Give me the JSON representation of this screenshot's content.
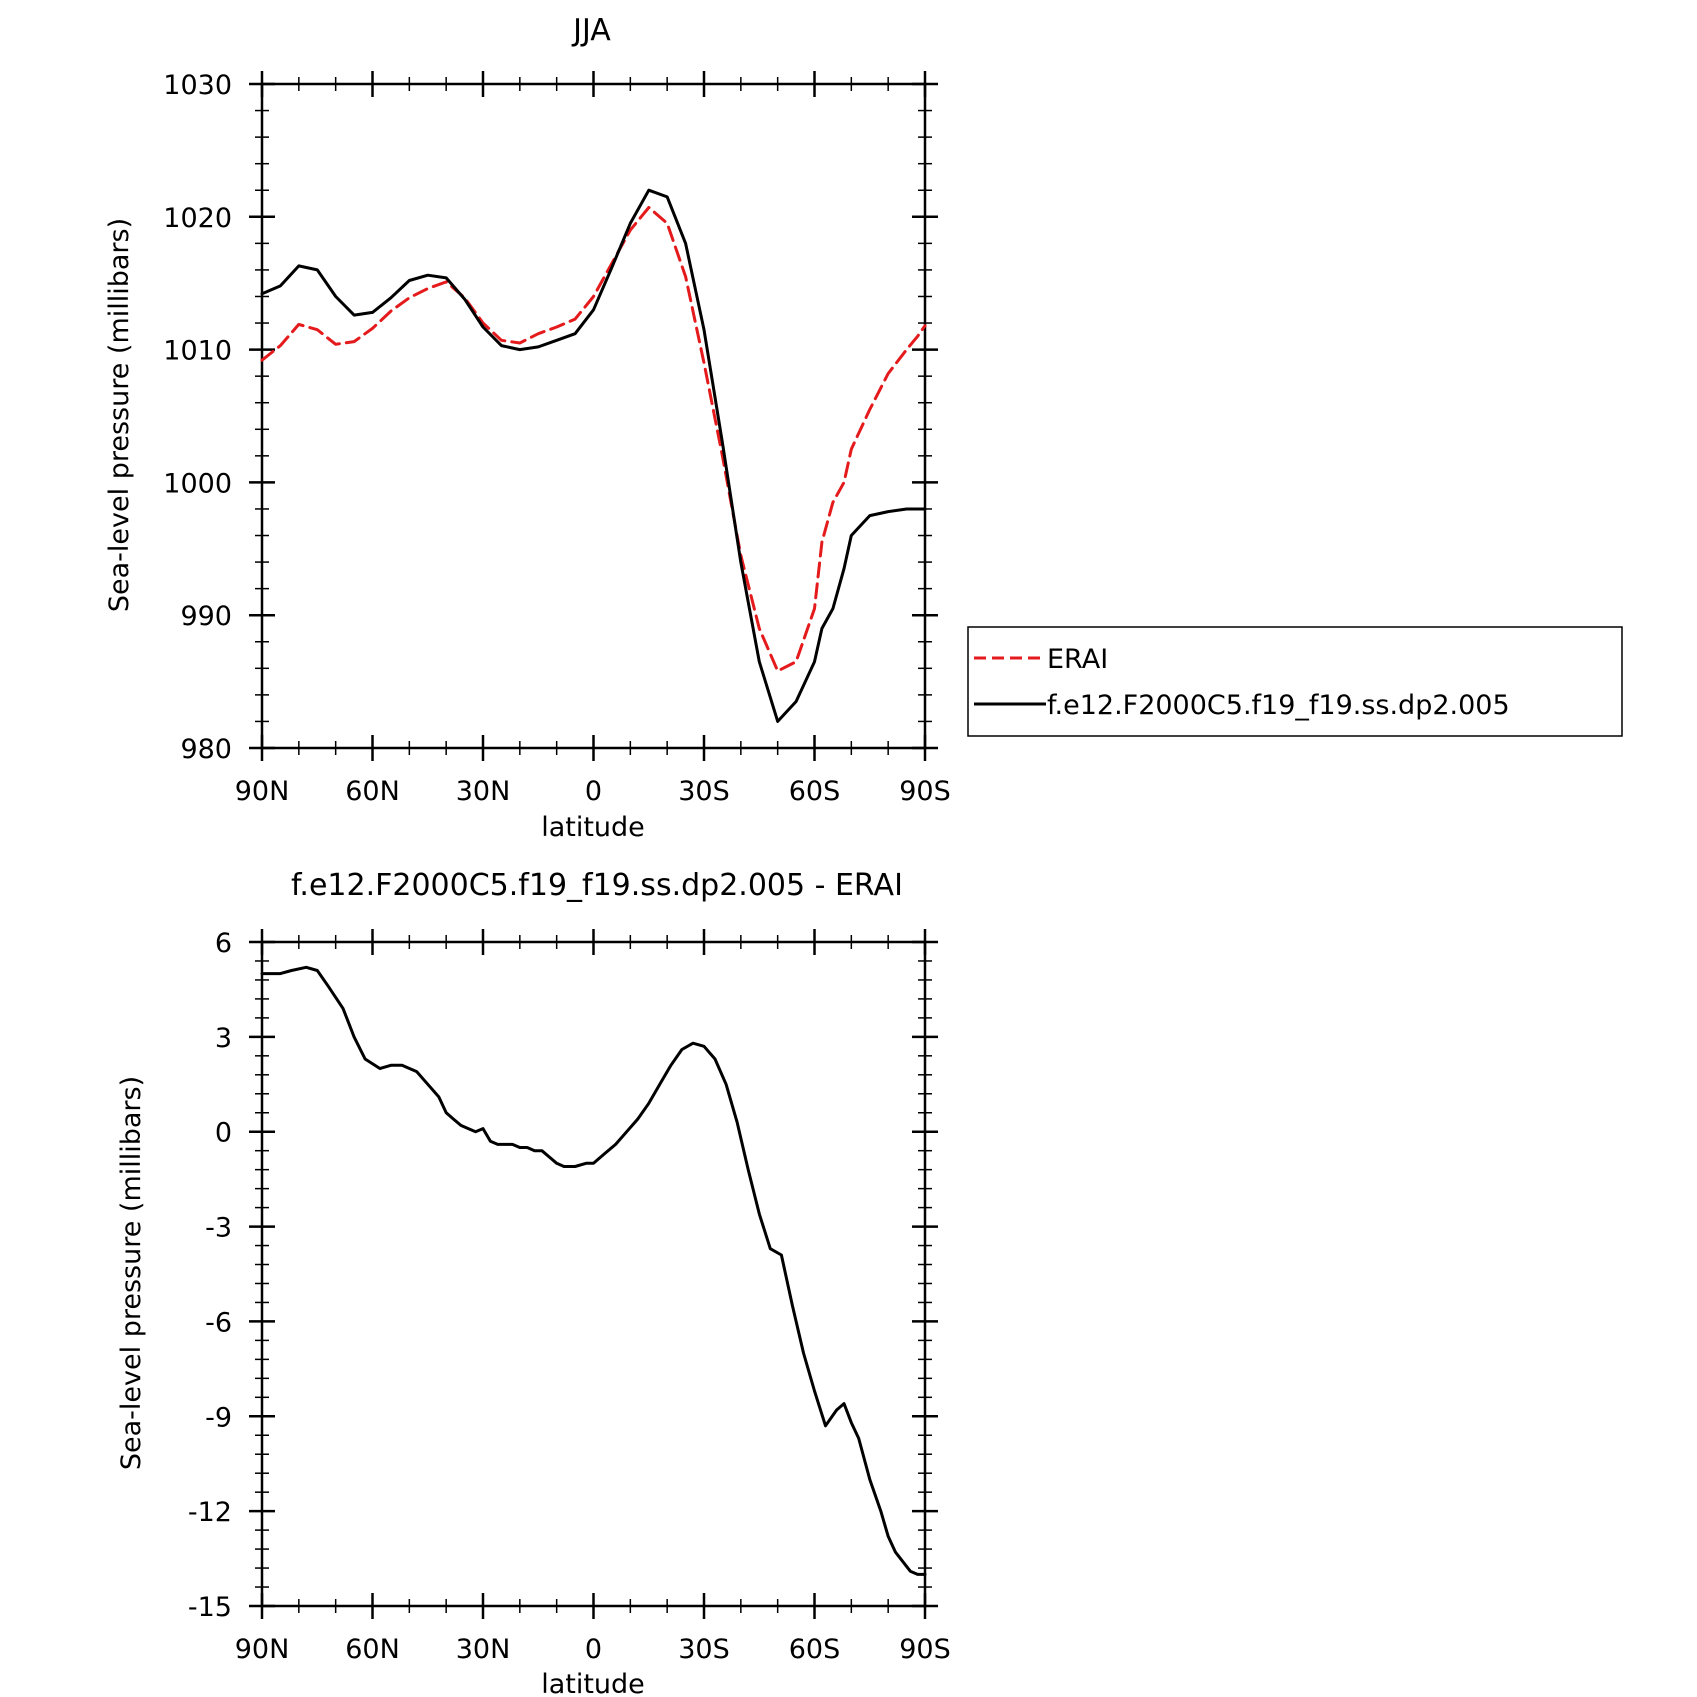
{
  "charts": [
    {
      "title": "JJA",
      "xlabel": "latitude",
      "ylabel": "Sea-level pressure (millibars)",
      "xticks": [
        "90N",
        "60N",
        "30N",
        "0",
        "30S",
        "60S",
        "90S"
      ],
      "yticks": [
        "980",
        "990",
        "1000",
        "1010",
        "1020",
        "1030"
      ],
      "legend": {
        "entries": [
          {
            "label": "ERAI",
            "color": "#e41a1c",
            "style": "dashed"
          },
          {
            "label": "f.e12.F2000C5.f19_f19.ss.dp2.005",
            "color": "#000000",
            "style": "solid"
          }
        ]
      }
    },
    {
      "title": "f.e12.F2000C5.f19_f19.ss.dp2.005 - ERAI",
      "xlabel": "latitude",
      "ylabel": "Sea-level pressure (millibars)",
      "xticks": [
        "90N",
        "60N",
        "30N",
        "0",
        "30S",
        "60S",
        "90S"
      ],
      "yticks": [
        "-15",
        "-12",
        "-9",
        "-6",
        "-3",
        "0",
        "3",
        "6"
      ]
    }
  ],
  "chart_data": [
    {
      "type": "line",
      "title": "JJA",
      "xlabel": "latitude",
      "ylabel": "Sea-level pressure (millibars)",
      "xlim": [
        90,
        -90
      ],
      "ylim": [
        980,
        1030
      ],
      "x_note_units": "degrees latitude (90N to 90S)",
      "x": [
        90,
        85,
        80,
        75,
        70,
        65,
        60,
        55,
        50,
        45,
        40,
        35,
        30,
        25,
        20,
        15,
        10,
        5,
        0,
        -5,
        -10,
        -15,
        -20,
        -25,
        -30,
        -35,
        -40,
        -45,
        -50,
        -55,
        -60,
        -62,
        -65,
        -68,
        -70,
        -75,
        -80,
        -85,
        -88,
        -90
      ],
      "series": [
        {
          "name": "ERAI",
          "color": "#e41a1c",
          "style": "dashed",
          "values": [
            1009.2,
            1010.3,
            1011.9,
            1011.5,
            1010.4,
            1010.6,
            1011.6,
            1012.9,
            1013.9,
            1014.6,
            1015.1,
            1013.9,
            1012.0,
            1010.7,
            1010.5,
            1011.2,
            1011.7,
            1012.3,
            1014.0,
            1016.5,
            1019.0,
            1020.7,
            1019.5,
            1015.5,
            1009.0,
            1002.0,
            994.5,
            989.0,
            985.8,
            986.5,
            990.5,
            995.5,
            998.5,
            1000.0,
            1002.5,
            1005.5,
            1008.2,
            1010.0,
            1011.0,
            1011.8
          ]
        },
        {
          "name": "f.e12.F2000C5.f19_f19.ss.dp2.005",
          "color": "#000000",
          "style": "solid",
          "values": [
            1014.2,
            1014.8,
            1016.3,
            1016.0,
            1014.0,
            1012.6,
            1012.8,
            1013.9,
            1015.2,
            1015.6,
            1015.4,
            1013.8,
            1011.7,
            1010.3,
            1010.0,
            1010.2,
            1010.7,
            1011.2,
            1013.0,
            1016.2,
            1019.5,
            1022.0,
            1021.5,
            1018.0,
            1011.5,
            1003.0,
            994.0,
            986.5,
            982.0,
            983.5,
            986.5,
            989.0,
            990.5,
            993.5,
            996.0,
            997.5,
            997.8,
            998.0,
            998.0,
            998.0
          ]
        }
      ],
      "grid": false,
      "legend_position": "right, outside plot"
    },
    {
      "type": "line",
      "title": "f.e12.F2000C5.f19_f19.ss.dp2.005 - ERAI",
      "xlabel": "latitude",
      "ylabel": "Sea-level pressure (millibars)",
      "xlim": [
        90,
        -90
      ],
      "ylim": [
        -15,
        6
      ],
      "x": [
        90,
        85,
        82,
        78,
        75,
        72,
        68,
        65,
        62,
        58,
        55,
        52,
        48,
        45,
        42,
        40,
        38,
        36,
        34,
        32,
        30,
        28,
        26,
        24,
        22,
        20,
        18,
        16,
        14,
        12,
        10,
        8,
        5,
        2,
        0,
        -3,
        -6,
        -9,
        -12,
        -15,
        -18,
        -21,
        -24,
        -27,
        -30,
        -33,
        -36,
        -39,
        -42,
        -45,
        -48,
        -51,
        -54,
        -57,
        -60,
        -63,
        -66,
        -68,
        -70,
        -72,
        -75,
        -78,
        -80,
        -82,
        -84,
        -86,
        -88,
        -90
      ],
      "series": [
        {
          "name": "",
          "color": "#000000",
          "style": "solid",
          "values": [
            5.0,
            5.0,
            5.1,
            5.2,
            5.1,
            4.6,
            3.9,
            3.0,
            2.3,
            2.0,
            2.1,
            2.1,
            1.9,
            1.5,
            1.1,
            0.6,
            0.4,
            0.2,
            0.1,
            0.0,
            0.1,
            -0.3,
            -0.4,
            -0.4,
            -0.4,
            -0.5,
            -0.5,
            -0.6,
            -0.6,
            -0.8,
            -1.0,
            -1.1,
            -1.1,
            -1.0,
            -1.0,
            -0.7,
            -0.4,
            0.0,
            0.4,
            0.9,
            1.5,
            2.1,
            2.6,
            2.8,
            2.7,
            2.3,
            1.5,
            0.3,
            -1.2,
            -2.6,
            -3.7,
            -3.9,
            -5.5,
            -7.0,
            -8.2,
            -9.3,
            -8.8,
            -8.6,
            -9.2,
            -9.7,
            -11.0,
            -12.0,
            -12.8,
            -13.3,
            -13.6,
            -13.9,
            -14.0,
            -14.0
          ]
        }
      ],
      "grid": false
    }
  ]
}
